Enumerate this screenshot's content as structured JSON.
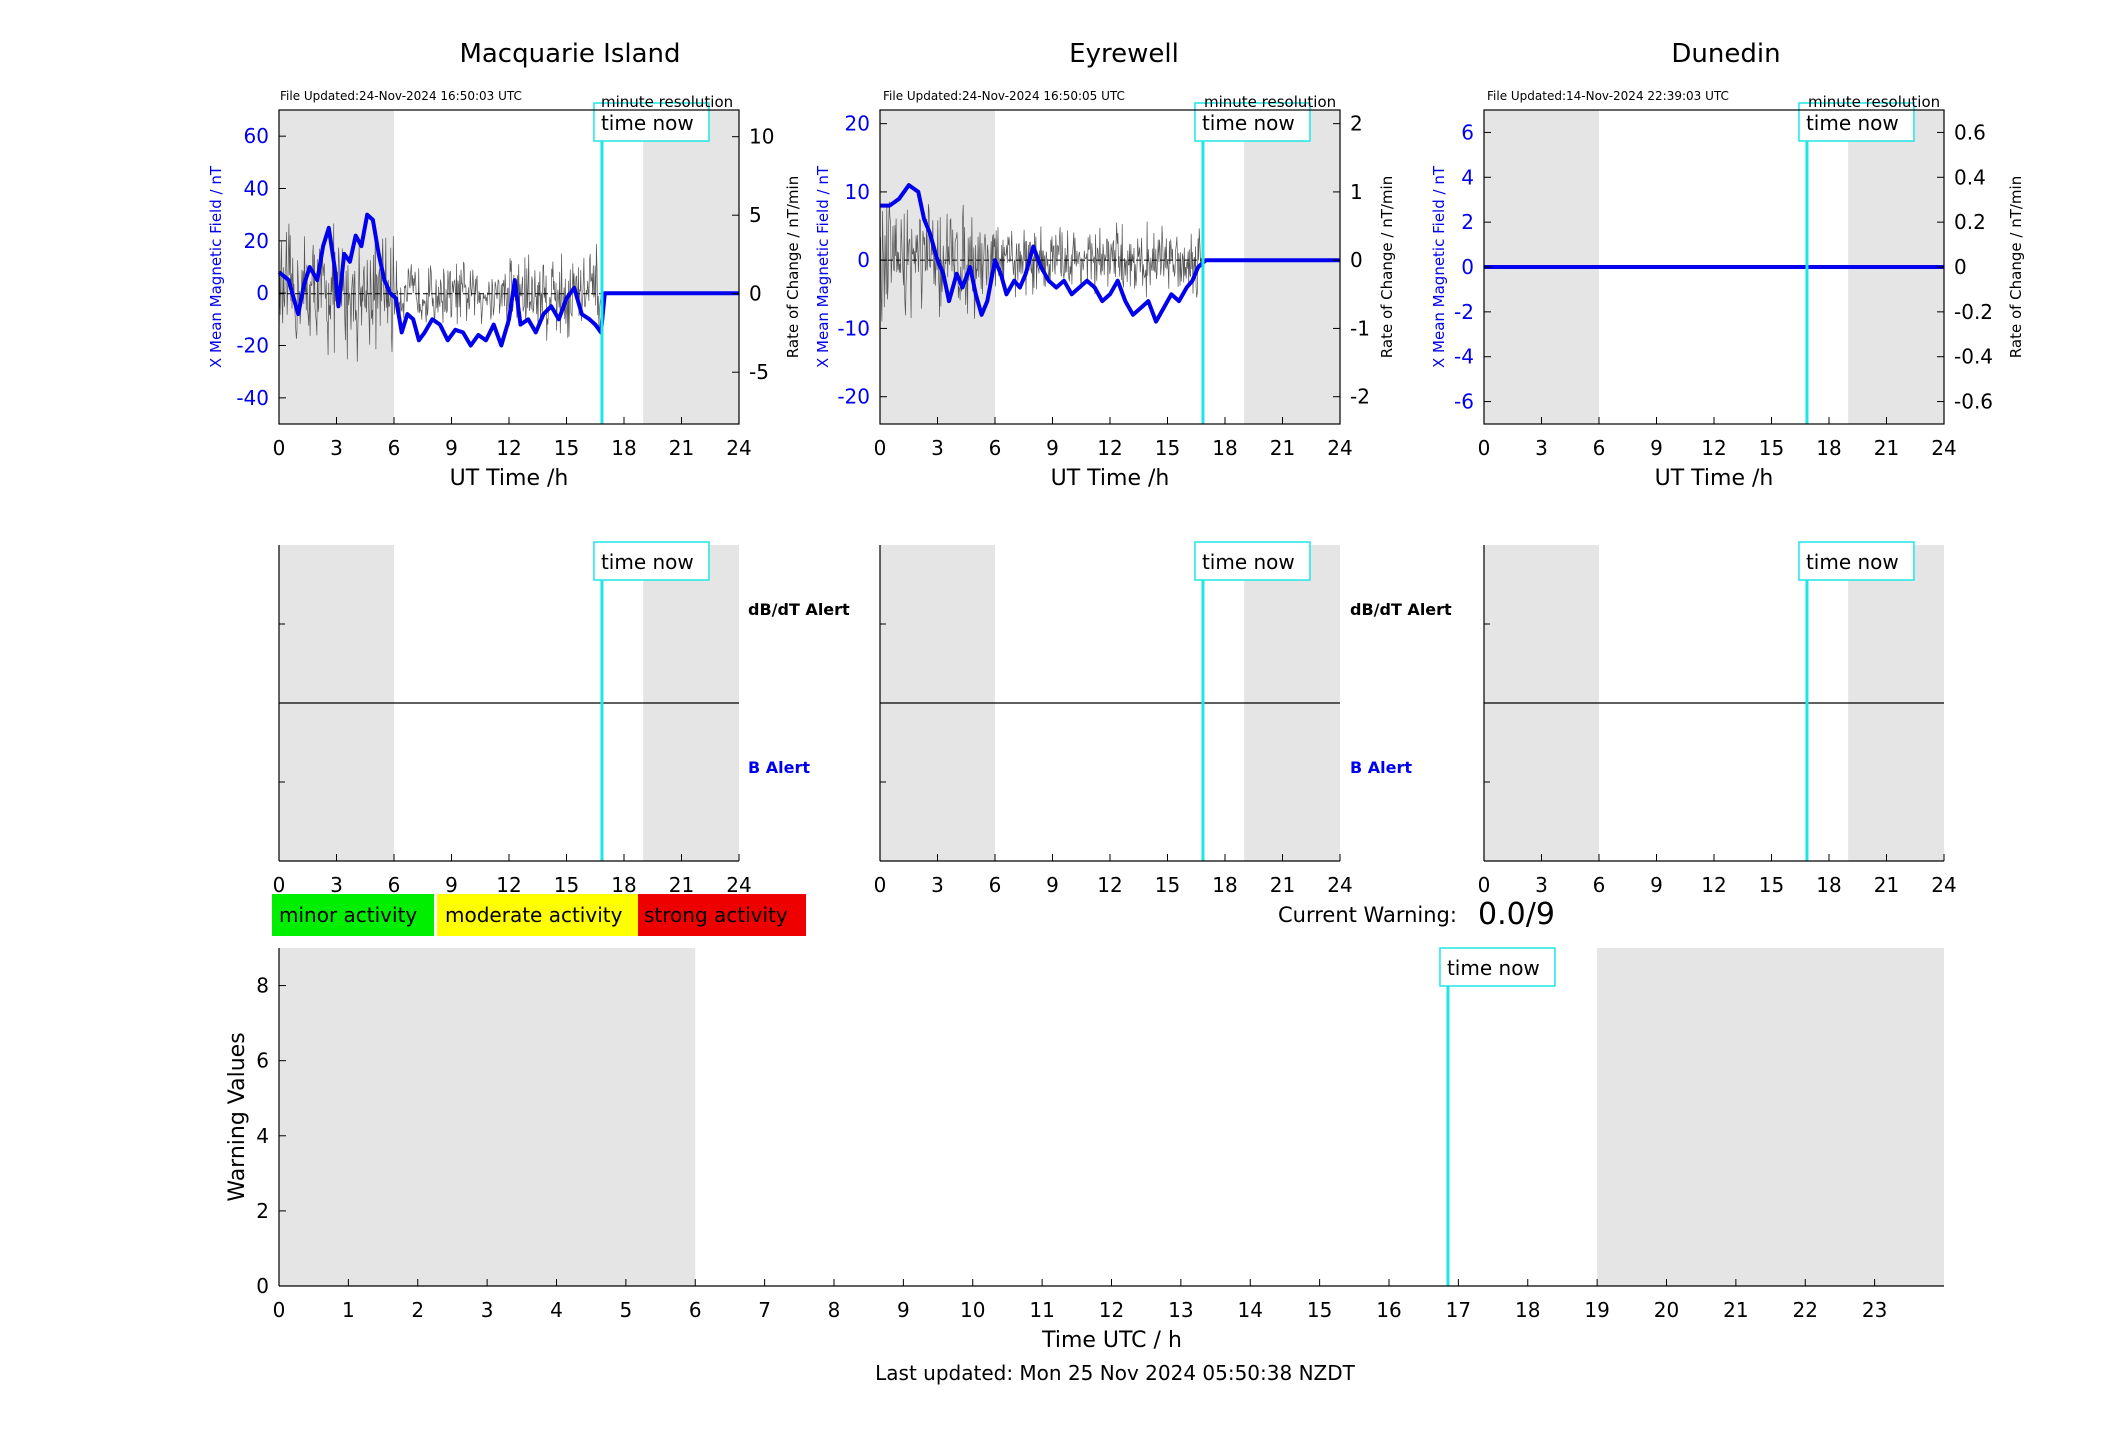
{
  "colors": {
    "blue": "#0000ee",
    "cyan": "#1fe6e6",
    "shade": "#e5e5e5",
    "green": "#00ee00",
    "yellow": "#ffff00",
    "red": "#ee0000",
    "rate": "#555555"
  },
  "field_panels": [
    {
      "title": "Macquarie Island",
      "file_updated": "File Updated:24-Nov-2024 16:50:03 UTC",
      "resolution": "minute resolution",
      "time_now_label": "time now",
      "xlabel": "UT Time /h",
      "ylabel_left": "X Mean Magnetic Field / nT",
      "ylabel_right": "Rate of Change / nT/min",
      "left_ticks": [
        "-40",
        "-20",
        "0",
        "20",
        "40",
        "60"
      ],
      "right_ticks": [
        "-5",
        "0",
        "5",
        "10"
      ],
      "x_ticks": [
        "0",
        "3",
        "6",
        "9",
        "12",
        "15",
        "18",
        "21",
        "24"
      ]
    },
    {
      "title": "Eyrewell",
      "file_updated": "File Updated:24-Nov-2024 16:50:05 UTC",
      "resolution": "minute resolution",
      "time_now_label": "time now",
      "xlabel": "UT Time /h",
      "ylabel_left": "X Mean Magnetic Field / nT",
      "ylabel_right": "Rate of Change / nT/min",
      "left_ticks": [
        "-20",
        "-10",
        "0",
        "10",
        "20"
      ],
      "right_ticks": [
        "-2",
        "-1",
        "0",
        "1",
        "2"
      ],
      "x_ticks": [
        "0",
        "3",
        "6",
        "9",
        "12",
        "15",
        "18",
        "21",
        "24"
      ]
    },
    {
      "title": "Dunedin",
      "file_updated": "File Updated:14-Nov-2024 22:39:03 UTC",
      "resolution": "minute resolution",
      "time_now_label": "time now",
      "xlabel": "UT Time /h",
      "ylabel_left": "X Mean Magnetic Field / nT",
      "ylabel_right": "Rate of Change / nT/min",
      "left_ticks": [
        "-6",
        "-4",
        "-2",
        "0",
        "2",
        "4",
        "6"
      ],
      "right_ticks": [
        "-0.6",
        "-0.4",
        "-0.2",
        "0",
        "0.2",
        "0.4",
        "0.6"
      ],
      "x_ticks": [
        "0",
        "3",
        "6",
        "9",
        "12",
        "15",
        "18",
        "21",
        "24"
      ]
    }
  ],
  "alert_panels": [
    {
      "time_now_label": "time now",
      "dbdt_label": "dB/dT Alert",
      "b_label": "B Alert",
      "x_ticks": [
        "0",
        "3",
        "6",
        "9",
        "12",
        "15",
        "18",
        "21",
        "24"
      ]
    },
    {
      "time_now_label": "time now",
      "dbdt_label": "dB/dT Alert",
      "b_label": "B Alert",
      "x_ticks": [
        "0",
        "3",
        "6",
        "9",
        "12",
        "15",
        "18",
        "21",
        "24"
      ]
    },
    {
      "time_now_label": "time now",
      "dbdt_label": "",
      "b_label": "",
      "x_ticks": [
        "0",
        "3",
        "6",
        "9",
        "12",
        "15",
        "18",
        "21",
        "24"
      ]
    }
  ],
  "legend": {
    "minor": "minor activity",
    "moderate": "moderate activity",
    "strong": "strong activity"
  },
  "current_warning": {
    "label": "Current Warning:",
    "value": "0.0/9"
  },
  "warning_chart": {
    "time_now_label": "time now",
    "xlabel": "Time UTC / h",
    "ylabel": "Warning Values",
    "y_ticks": [
      "0",
      "2",
      "4",
      "6",
      "8"
    ],
    "x_ticks": [
      "0",
      "1",
      "2",
      "3",
      "4",
      "5",
      "6",
      "7",
      "8",
      "9",
      "10",
      "11",
      "12",
      "13",
      "14",
      "15",
      "16",
      "17",
      "18",
      "19",
      "20",
      "21",
      "22",
      "23"
    ]
  },
  "last_updated": "Last updated: Mon 25 Nov 2024 05:50:38 NZDT",
  "chart_data": [
    {
      "type": "line",
      "title": "Macquarie Island",
      "xlabel": "UT Time /h",
      "ylabel": "X Mean Magnetic Field / nT",
      "y2label": "Rate of Change / nT/min",
      "xlim": [
        0,
        24
      ],
      "ylim": [
        -50,
        70
      ],
      "y2lim": [
        -8.3,
        11.7
      ],
      "time_now": 16.85,
      "shaded_hours": [
        [
          0,
          6
        ],
        [
          19,
          24
        ]
      ],
      "series": [
        {
          "axis": "left",
          "x": [
            0,
            0.5,
            1,
            1.3,
            1.6,
            2,
            2.3,
            2.6,
            2.9,
            3.1,
            3.4,
            3.7,
            4,
            4.3,
            4.6,
            4.9,
            5.2,
            5.5,
            5.8,
            6.1,
            6.4,
            6.7,
            7,
            7.3,
            7.6,
            8,
            8.4,
            8.8,
            9.2,
            9.6,
            10,
            10.4,
            10.8,
            11.2,
            11.6,
            12,
            12.3,
            12.6,
            13,
            13.4,
            13.8,
            14.2,
            14.6,
            15,
            15.4,
            15.8,
            16.2,
            16.5,
            16.8,
            17,
            18,
            19,
            20,
            21,
            22,
            23,
            24
          ],
          "y": [
            8,
            5,
            -8,
            3,
            10,
            5,
            18,
            25,
            10,
            -5,
            15,
            12,
            22,
            18,
            30,
            28,
            15,
            5,
            0,
            -2,
            -15,
            -8,
            -10,
            -18,
            -15,
            -10,
            -12,
            -18,
            -14,
            -15,
            -20,
            -16,
            -18,
            -12,
            -20,
            -10,
            5,
            -12,
            -10,
            -15,
            -8,
            -5,
            -10,
            -2,
            2,
            -8,
            -10,
            -12,
            -15,
            0,
            0,
            0,
            0,
            0,
            0,
            0,
            0
          ]
        },
        {
          "axis": "right",
          "noise_amplitude": [
            [
              0,
              6,
              4
            ],
            [
              6,
              12,
              2
            ],
            [
              12,
              16.85,
              3
            ]
          ],
          "x_end": 16.85
        }
      ]
    },
    {
      "type": "line",
      "title": "Eyrewell",
      "xlabel": "UT Time /h",
      "ylabel": "X Mean Magnetic Field / nT",
      "y2label": "Rate of Change / nT/min",
      "xlim": [
        0,
        24
      ],
      "ylim": [
        -24,
        22
      ],
      "y2lim": [
        -2.4,
        2.2
      ],
      "time_now": 16.85,
      "shaded_hours": [
        [
          0,
          6
        ],
        [
          19,
          24
        ]
      ],
      "series": [
        {
          "axis": "left",
          "x": [
            0,
            0.5,
            1,
            1.5,
            2,
            2.3,
            2.6,
            3,
            3.3,
            3.6,
            4,
            4.3,
            4.7,
            5,
            5.3,
            5.6,
            6,
            6.3,
            6.6,
            7,
            7.3,
            7.6,
            8,
            8.4,
            8.8,
            9.2,
            9.6,
            10,
            10.4,
            10.8,
            11.2,
            11.6,
            12,
            12.4,
            12.8,
            13.2,
            13.6,
            14,
            14.4,
            14.8,
            15.2,
            15.6,
            16,
            16.3,
            16.6,
            17,
            18,
            19,
            20,
            21,
            22,
            23,
            24
          ],
          "y": [
            8,
            8,
            9,
            11,
            10,
            6,
            4,
            0,
            -2,
            -6,
            -2,
            -4,
            -1,
            -5,
            -8,
            -6,
            0,
            -2,
            -5,
            -3,
            -4,
            -2,
            2,
            -1,
            -3,
            -4,
            -3,
            -5,
            -4,
            -3,
            -4,
            -6,
            -5,
            -3,
            -6,
            -8,
            -7,
            -6,
            -9,
            -7,
            -5,
            -6,
            -4,
            -3,
            -1,
            0,
            0,
            0,
            0,
            0,
            0,
            0,
            0
          ]
        },
        {
          "axis": "right",
          "noise_amplitude": [
            [
              0,
              6,
              0.8
            ],
            [
              6,
              12,
              0.5
            ],
            [
              12,
              16.85,
              0.5
            ]
          ],
          "x_end": 16.85
        }
      ]
    },
    {
      "type": "line",
      "title": "Dunedin",
      "xlabel": "UT Time /h",
      "ylabel": "X Mean Magnetic Field / nT",
      "y2label": "Rate of Change / nT/min",
      "xlim": [
        0,
        24
      ],
      "ylim": [
        -7,
        7
      ],
      "y2lim": [
        -0.7,
        0.7
      ],
      "time_now": 16.85,
      "shaded_hours": [
        [
          0,
          6
        ],
        [
          19,
          24
        ]
      ],
      "series": [
        {
          "axis": "left",
          "x": [
            0,
            24
          ],
          "y": [
            0,
            0
          ]
        }
      ]
    },
    {
      "type": "line",
      "title": "",
      "xlabel": "Time UTC / h",
      "ylabel": "Warning Values",
      "xlim": [
        0,
        24
      ],
      "ylim": [
        0,
        9
      ],
      "time_now": 16.85,
      "shaded_hours": [
        [
          0,
          6
        ],
        [
          19,
          24
        ]
      ],
      "current_value": 0.0
    }
  ]
}
